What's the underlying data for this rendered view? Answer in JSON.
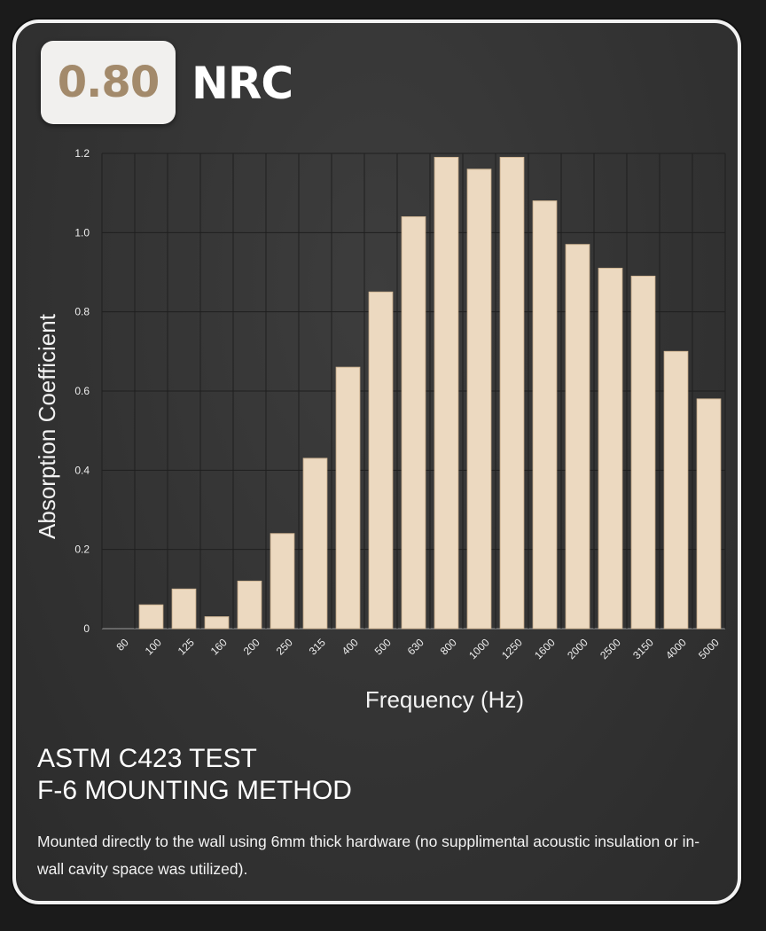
{
  "header": {
    "nrc_value": "0.80",
    "nrc_label": "NRC"
  },
  "chart_data": {
    "type": "bar",
    "xlabel": "Frequency (Hz)",
    "ylabel": "Absorption Coefficient",
    "categories": [
      "80",
      "100",
      "125",
      "160",
      "200",
      "250",
      "315",
      "400",
      "500",
      "630",
      "800",
      "1000",
      "1250",
      "1600",
      "2000",
      "2500",
      "3150",
      "4000",
      "5000"
    ],
    "values": [
      0,
      0.06,
      0.1,
      0.03,
      0.12,
      0.24,
      0.43,
      0.66,
      0.85,
      1.04,
      1.19,
      1.16,
      1.19,
      1.08,
      0.97,
      0.91,
      0.89,
      0.7,
      0.58
    ],
    "ylim": [
      0,
      1.2
    ],
    "yticks": [
      "0",
      "0.2",
      "0.4",
      "0.6",
      "0.8",
      "1.0",
      "1.2"
    ],
    "grid": true,
    "legend": "none",
    "colors": {
      "bar": "#ecd9c0",
      "bar_edge": "#d2b896",
      "grid": "#1f1f1f"
    }
  },
  "test": {
    "title_line1": "ASTM C423 TEST",
    "title_line2": "F-6 MOUNTING METHOD",
    "description": "Mounted directly to the wall using 6mm thick hardware (no supplimental acoustic insulation or in-wall cavity space was utilized)."
  }
}
